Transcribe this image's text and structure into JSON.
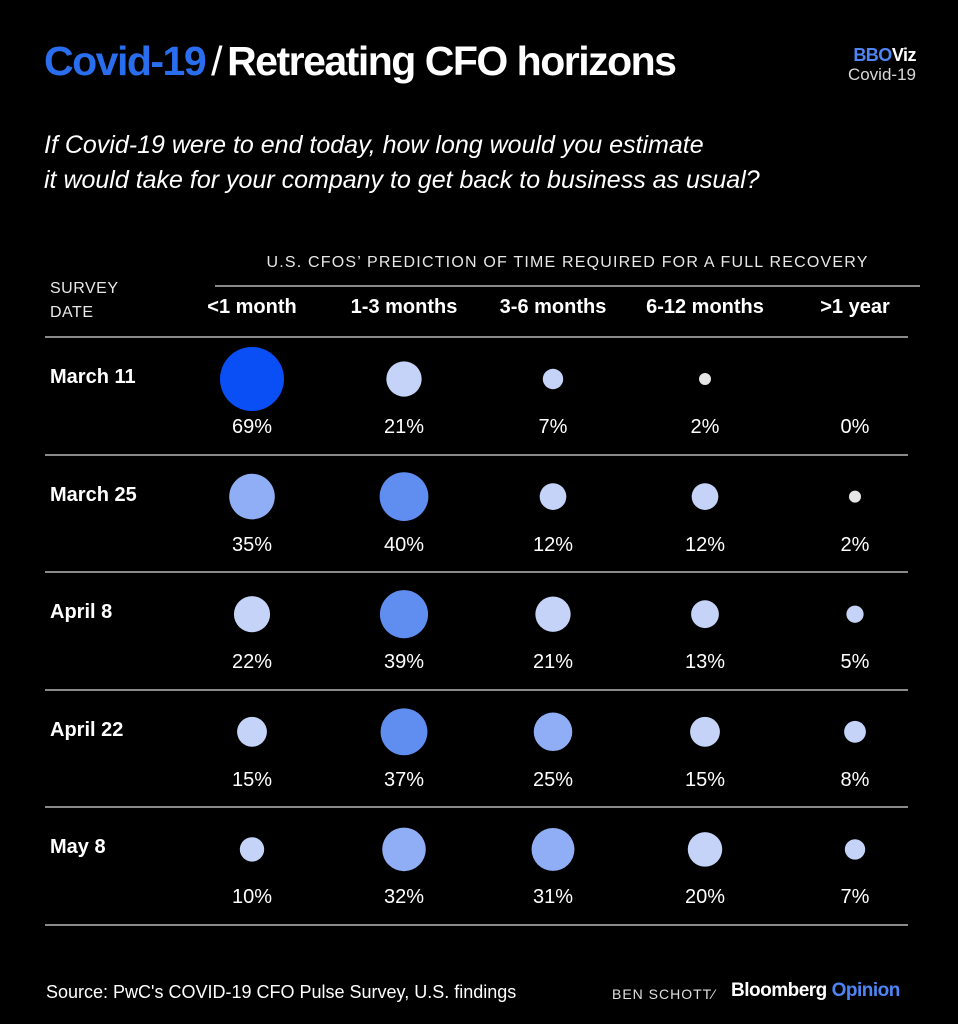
{
  "title": {
    "accent": "Covid-19",
    "separator": "/",
    "main": "Retreating CFO horizons"
  },
  "brand": {
    "bb": "BBO",
    "viz": "Viz",
    "sub": "Covid-19"
  },
  "subtitle_line1": "If Covid-19 were to end today, how long would you estimate",
  "subtitle_line2": "it would take for your company to get back to business as usual?",
  "survey_label_line1": "SURVEY",
  "survey_label_line2": "DATE",
  "header_caption": "U.S. CFOS’ PREDICTION OF TIME REQUIRED FOR A FULL RECOVERY",
  "chart_data": {
    "type": "bubble-table",
    "columns": [
      "<1 month",
      "1-3 months",
      "3-6 months",
      "6-12 months",
      ">1 year"
    ],
    "rows": [
      {
        "date": "March 11",
        "values": [
          69,
          21,
          7,
          2,
          0
        ],
        "labels": [
          "69%",
          "21%",
          "7%",
          "2%",
          "0%"
        ]
      },
      {
        "date": "March 25",
        "values": [
          35,
          40,
          12,
          12,
          2
        ],
        "labels": [
          "35%",
          "40%",
          "12%",
          "12%",
          "2%"
        ]
      },
      {
        "date": "April 8",
        "values": [
          22,
          39,
          21,
          13,
          5
        ],
        "labels": [
          "22%",
          "39%",
          "21%",
          "13%",
          "5%"
        ]
      },
      {
        "date": "April 22",
        "values": [
          15,
          37,
          25,
          15,
          8
        ],
        "labels": [
          "15%",
          "37%",
          "25%",
          "15%",
          "8%"
        ]
      },
      {
        "date": "May 8",
        "values": [
          10,
          32,
          31,
          20,
          7
        ],
        "labels": [
          "10%",
          "32%",
          "31%",
          "20%",
          "7%"
        ]
      }
    ],
    "colors": {
      "max": "#0a4ff5",
      "high": "#5f8ef0",
      "mid": "#8faef5",
      "low": "#c4d3f7",
      "min": "#e6e6e6"
    }
  },
  "footer": {
    "source": "Source: PwC's COVID-19 CFO Pulse Survey, U.S. findings",
    "byline": "BEN SCHOTT",
    "slash": "⁄",
    "brand_bloomberg": "Bloomberg",
    "brand_opinion": "Opinion"
  }
}
